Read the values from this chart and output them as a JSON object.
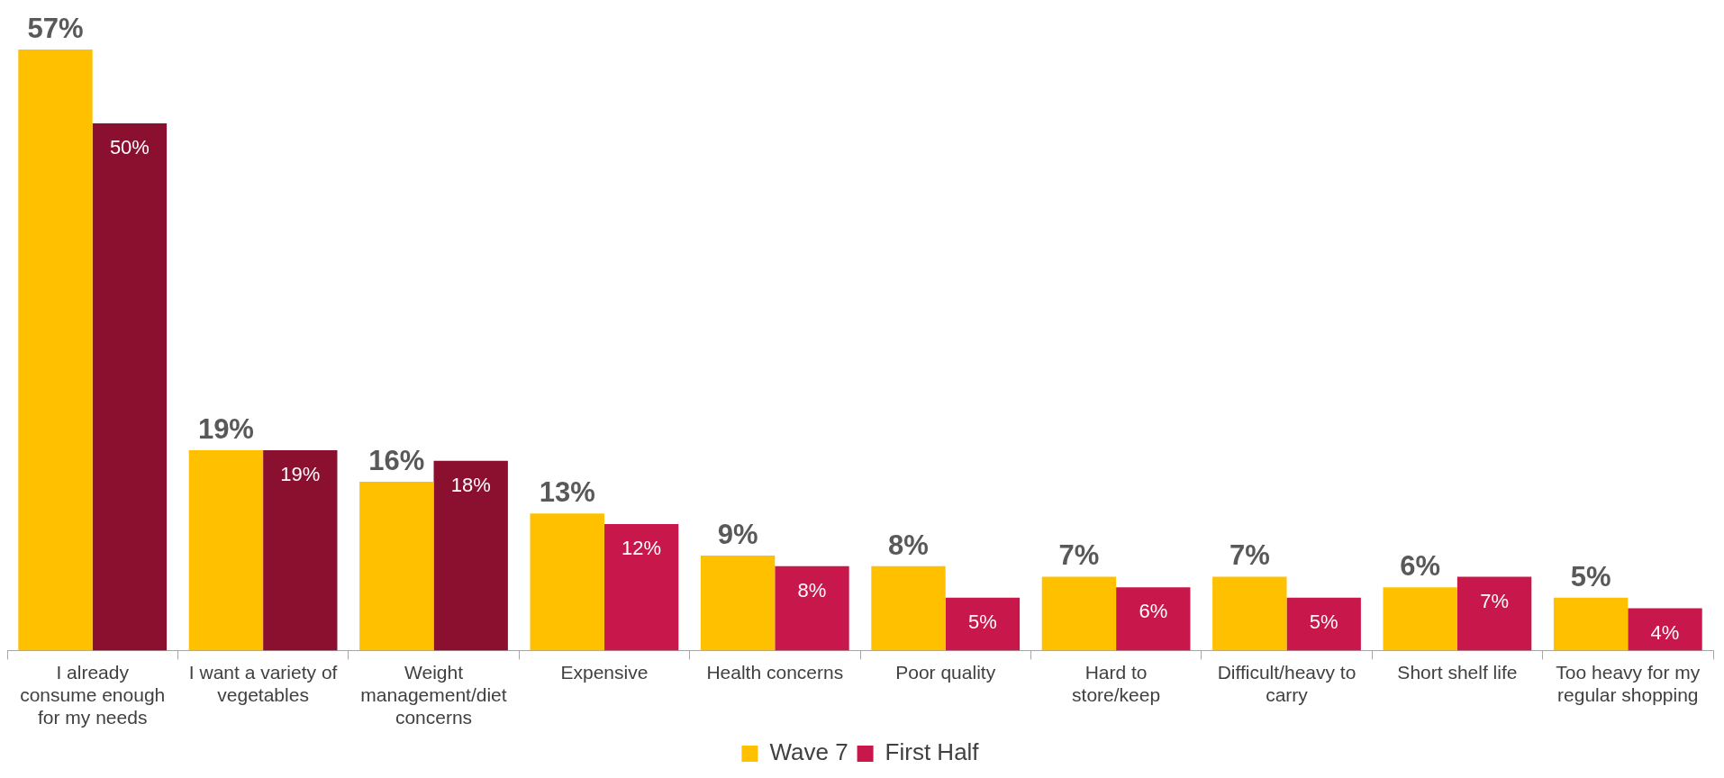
{
  "chart_data": {
    "type": "bar",
    "categories": [
      "I already consume enough for my needs",
      "I want a variety of vegetables",
      "Weight management/diet concerns",
      "Expensive",
      "Health concerns",
      "Poor quality",
      "Hard to store/keep",
      "Difficult/heavy to carry",
      "Short shelf life",
      "Too heavy for my regular shopping"
    ],
    "series": [
      {
        "name": "Wave 7",
        "color": "#ffc000",
        "values": [
          57,
          19,
          16,
          13,
          9,
          8,
          7,
          7,
          6,
          5
        ],
        "value_labels": [
          "57%",
          "19%",
          "16%",
          "13%",
          "9%",
          "8%",
          "7%",
          "7%",
          "6%",
          "5%"
        ]
      },
      {
        "name": "First Half",
        "color": "#c8174a",
        "colors": [
          "#8b0f2f",
          "#8b0f2f",
          "#8b0f2f",
          "#c8174a",
          "#c8174a",
          "#c8174a",
          "#c8174a",
          "#c8174a",
          "#c8174a",
          "#c8174a"
        ],
        "values": [
          50,
          19,
          18,
          12,
          8,
          5,
          6,
          5,
          7,
          4
        ],
        "value_labels": [
          "50%",
          "19%",
          "18%",
          "12%",
          "8%",
          "5%",
          "6%",
          "5%",
          "7%",
          "4%"
        ]
      }
    ],
    "legend": "bottom",
    "grid": false
  }
}
